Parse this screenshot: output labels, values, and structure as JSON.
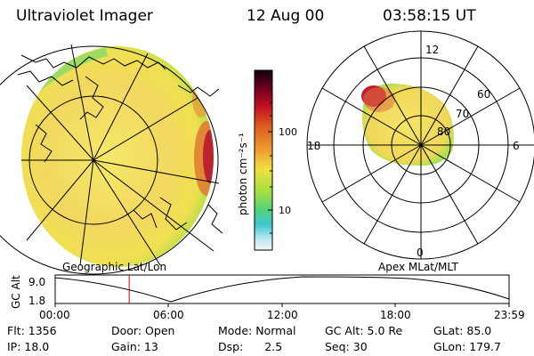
{
  "header": {
    "instrument": "Ultraviolet Imager",
    "date": "12 Aug 00",
    "time": "03:58:15 UT"
  },
  "colorbar": {
    "unit": "photon cm⁻²s⁻¹",
    "ticks": [
      "100",
      "10"
    ],
    "colors": [
      "#1a0000",
      "#a00020",
      "#e05020",
      "#f0a030",
      "#f0e040",
      "#90e040",
      "#40d0c0",
      "#f0f0f0"
    ]
  },
  "geo_panel": {
    "label": "Geographic Lat/Lon"
  },
  "polar_panel": {
    "label": "Apex MLat/MLT",
    "mlt_labels": {
      "top": "12",
      "left": "18",
      "right": "6",
      "bottom": "0"
    },
    "mlat_labels": [
      "60",
      "70",
      "80"
    ]
  },
  "altitude_plot": {
    "ylabel": "GC Alt",
    "y_ticks": [
      "9.0",
      "1.8"
    ],
    "x_ticks": [
      "00:00",
      "06:00",
      "12:00",
      "18:00",
      "23:59"
    ],
    "current_time_fraction": 0.163,
    "marker_color": "#e00000"
  },
  "info": {
    "rows": [
      [
        {
          "label": "Flt:",
          "value": "1356"
        },
        {
          "label": "Door:",
          "value": "Open"
        },
        {
          "label": "Mode:",
          "value": "Normal"
        },
        {
          "label": "GC Alt:",
          "value": "5.0 Re"
        },
        {
          "label": "GLat:",
          "value": "85.0"
        }
      ],
      [
        {
          "label": "IP:",
          "value": "18.0"
        },
        {
          "label": "Gain:",
          "value": "13"
        },
        {
          "label": "Dsp:",
          "value": "2.5"
        },
        {
          "label": "Seq:",
          "value": "30"
        },
        {
          "label": "GLon:",
          "value": "179.7"
        }
      ]
    ]
  }
}
